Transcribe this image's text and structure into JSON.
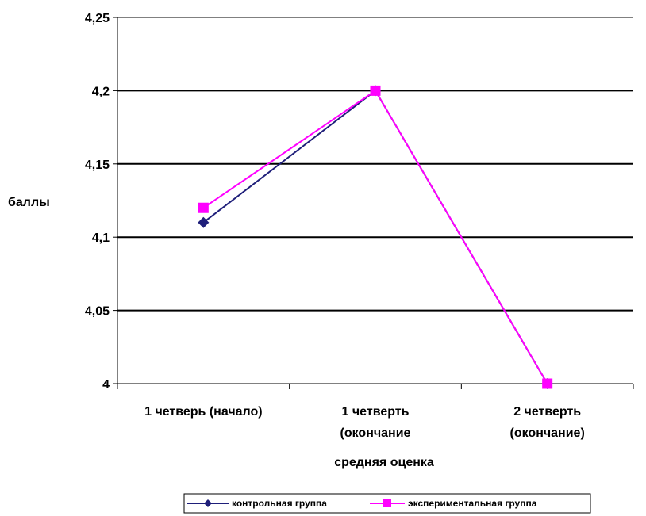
{
  "colors": {
    "series1": "#1f1f7a",
    "series2": "#ff00ff",
    "grid": "#000000",
    "top_grid": "#808080"
  },
  "chart_data": {
    "type": "line",
    "categories": [
      [
        "1 четверь (начало)"
      ],
      [
        "1 четверть",
        "(окончание"
      ],
      [
        "2 четверть",
        "(окончание)"
      ]
    ],
    "series": [
      {
        "name": "контрольная группа",
        "values": [
          4.11,
          4.2,
          4.0
        ],
        "marker": "diamond"
      },
      {
        "name": "экспериментальная группа",
        "values": [
          4.12,
          4.2,
          4.0
        ],
        "marker": "square"
      }
    ],
    "yticks": [
      "4",
      "4,05",
      "4,1",
      "4,15",
      "4,2",
      "4,25"
    ],
    "ytick_values": [
      4.0,
      4.05,
      4.1,
      4.15,
      4.2,
      4.25
    ],
    "title": "",
    "xlabel": "средняя оценка",
    "ylabel": "баллы",
    "ylim": [
      4.0,
      4.25
    ],
    "grid": true,
    "legend_position": "bottom"
  }
}
